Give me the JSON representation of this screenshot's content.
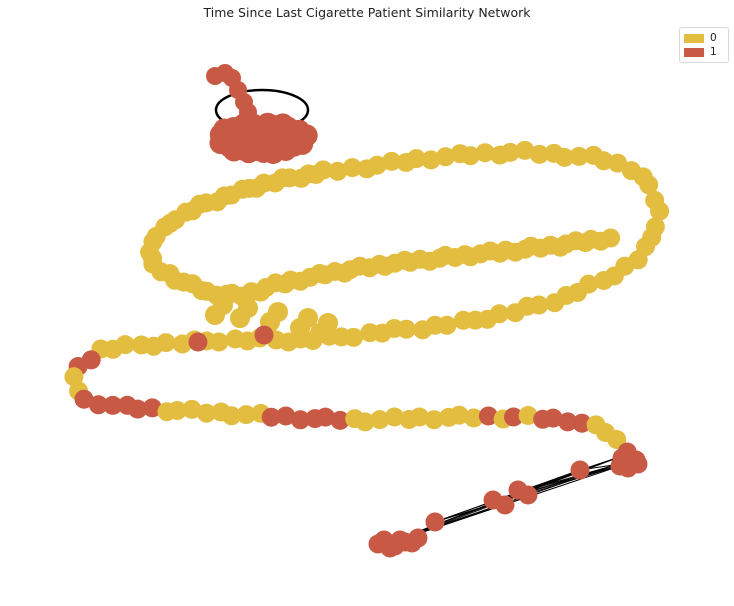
{
  "title": "Time Since Last Cigarette Patient Similarity Network",
  "colors": {
    "0": "#e3bd40",
    "1": "#c85a45",
    "edge": "#000000"
  },
  "legend": [
    {
      "label": "0",
      "color": "#e3bd40"
    },
    {
      "label": "1",
      "color": "#c85a45"
    }
  ],
  "chart_data": {
    "type": "network",
    "title": "Time Since Last Cigarette Patient Similarity Network",
    "node_classes": [
      "0",
      "1"
    ],
    "legend_placement": "top-right",
    "grid": false,
    "axes": false
  }
}
